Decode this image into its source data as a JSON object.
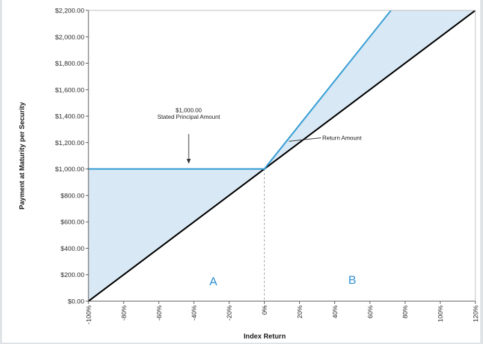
{
  "chart_data": {
    "type": "line",
    "title": "",
    "xlabel": "Index Return",
    "ylabel": "Payment at Maturity per Security",
    "x_ticks": [
      "-100%",
      "-80%",
      "-60%",
      "-40%",
      "-20%",
      "0%",
      "20%",
      "40%",
      "60%",
      "80%",
      "100%",
      "120%"
    ],
    "y_ticks": [
      "$0.00",
      "$200.00",
      "$400.00",
      "$600.00",
      "$800.00",
      "$1,000.00",
      "$1,200.00",
      "$1,400.00",
      "$1,600.00",
      "$1,800.00",
      "$2,000.00",
      "$2,200.00"
    ],
    "xlim": [
      -100,
      120
    ],
    "ylim": [
      0,
      2200
    ],
    "grid": false,
    "series": [
      {
        "color": "#000000",
        "points": [
          [
            -100,
            0
          ],
          [
            120,
            2200
          ]
        ]
      },
      {
        "color": "#3a9fd6",
        "points": [
          [
            -100,
            1000
          ],
          [
            0,
            1000
          ],
          [
            72,
            2200
          ]
        ]
      }
    ],
    "shading_color": "#d8e8f4",
    "annotations": [
      {
        "text": "$1,000.00",
        "x": -43,
        "y": 1430
      },
      {
        "text": "Stated Principal Amount",
        "x": -43,
        "y": 1380
      },
      {
        "text": "Return Amount",
        "x": 33,
        "y": 1220
      }
    ],
    "arrows": [
      {
        "from": [
          -43,
          1265
        ],
        "to": [
          -43,
          1040
        ]
      },
      {
        "from": [
          18,
          1200
        ],
        "to": [
          14,
          1210
        ]
      }
    ],
    "region_labels": [
      {
        "text": "A",
        "x": -29,
        "y": 120
      },
      {
        "text": "B",
        "x": 50,
        "y": 130
      }
    ],
    "reference_line_x": 0
  }
}
